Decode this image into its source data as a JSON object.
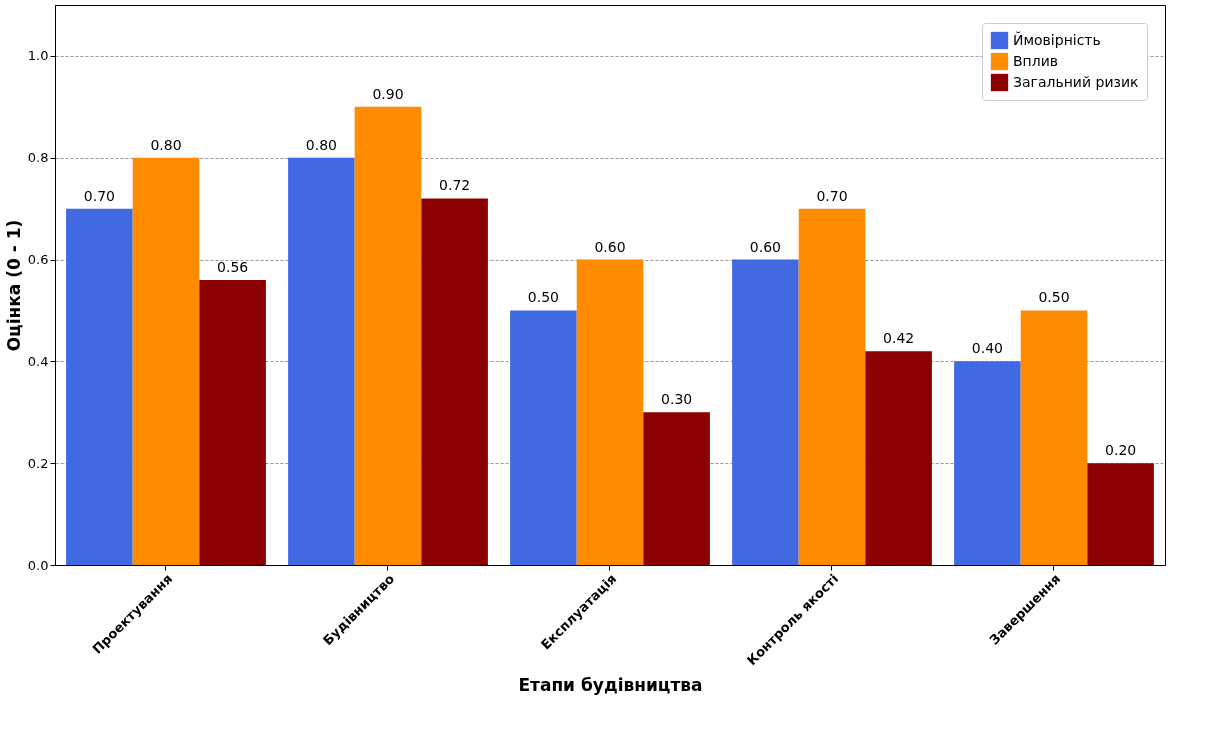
{
  "chart_data": {
    "type": "bar",
    "xlabel": "Етапи будівництва",
    "ylabel": "Оцінка (0 - 1)",
    "categories": [
      "Проектування",
      "Будівництво",
      "Експлуатація",
      "Контроль якості",
      "Завершення"
    ],
    "series": [
      {
        "name": "Ймовірність",
        "color": "#4169e1",
        "values": [
          0.7,
          0.8,
          0.5,
          0.6,
          0.4
        ],
        "value_labels": [
          "0.70",
          "0.80",
          "0.50",
          "0.60",
          "0.40"
        ]
      },
      {
        "name": "Вплив",
        "color": "#ff8c00",
        "values": [
          0.8,
          0.9,
          0.6,
          0.7,
          0.5
        ],
        "value_labels": [
          "0.80",
          "0.90",
          "0.60",
          "0.70",
          "0.50"
        ]
      },
      {
        "name": "Загальний ризик",
        "color": "#8b0000",
        "values": [
          0.56,
          0.72,
          0.3,
          0.42,
          0.2
        ],
        "value_labels": [
          "0.56",
          "0.72",
          "0.30",
          "0.42",
          "0.20"
        ]
      }
    ],
    "ylim": [
      0,
      1.1
    ],
    "yticks": [
      {
        "value": 0,
        "label": "0.0"
      },
      {
        "value": 0.2,
        "label": "0.2"
      },
      {
        "value": 0.4,
        "label": "0.4"
      },
      {
        "value": 0.6,
        "label": "0.6"
      },
      {
        "value": 0.8,
        "label": "0.8"
      },
      {
        "value": 1.0,
        "label": "1.0"
      }
    ],
    "grid": "y",
    "legend": "top right"
  }
}
